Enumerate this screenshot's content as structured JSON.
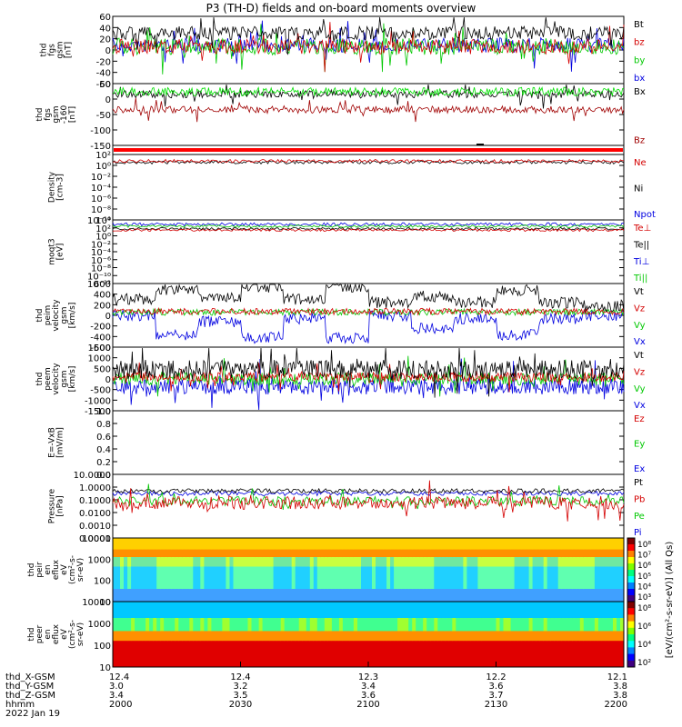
{
  "title": "P3 (TH-D) fields and on-board moments overview",
  "chart_data": [
    {
      "type": "line",
      "ylabel": [
        "thd",
        "fgs",
        "gsm",
        "[nT]"
      ],
      "ylim": [
        -60,
        60
      ],
      "yticks": [
        "60",
        "40",
        "20",
        "0",
        "-20",
        "-40",
        "-60"
      ],
      "legend": [
        {
          "name": "Bt",
          "color": "#000000"
        },
        {
          "name": "bz",
          "color": "#d40000"
        },
        {
          "name": "by",
          "color": "#00c800"
        },
        {
          "name": "bx",
          "color": "#0000e0"
        }
      ]
    },
    {
      "type": "line",
      "ylabel": [
        "thd",
        "fgs",
        "gsm",
        "-160",
        "[nT]"
      ],
      "ylim": [
        -170,
        60
      ],
      "yticks": [
        "50",
        "0",
        "-50",
        "-100",
        "-150"
      ],
      "legend": [
        {
          "name": "Bx",
          "color": "#000000"
        },
        {
          "name": "Bz",
          "color": "#a00000"
        }
      ]
    },
    {
      "type": "line",
      "ylabel": [
        "Density",
        "[cm-3]"
      ],
      "yticks": [
        "10²",
        "10⁰",
        "10⁻²",
        "10⁻⁴",
        "10⁻⁶",
        "10⁻⁸",
        "10⁻¹⁰"
      ],
      "legend": [
        {
          "name": "Ne",
          "color": "#d40000"
        },
        {
          "name": "Ni",
          "color": "#000000"
        },
        {
          "name": "Npot",
          "color": "#0000e0"
        }
      ]
    },
    {
      "type": "line",
      "ylabel": [
        "moqt3",
        "[eV]"
      ],
      "yticks": [
        "10⁴",
        "10²",
        "10⁰",
        "10⁻²",
        "10⁻⁴",
        "10⁻⁶",
        "10⁻⁸",
        "10⁻¹⁰",
        "10⁻¹²"
      ],
      "legend": [
        {
          "name": "Te⊥",
          "color": "#d40000"
        },
        {
          "name": "Te||",
          "color": "#000000"
        },
        {
          "name": "Ti⊥",
          "color": "#0000e0"
        },
        {
          "name": "Ti||",
          "color": "#00c800"
        }
      ]
    },
    {
      "type": "line",
      "ylabel": [
        "thd",
        "peim",
        "velocity",
        "gsm",
        "[km/s]"
      ],
      "ylim": [
        -600,
        600
      ],
      "yticks": [
        "600",
        "400",
        "200",
        "0",
        "-200",
        "-400",
        "-600"
      ],
      "legend": [
        {
          "name": "Vt",
          "color": "#000000"
        },
        {
          "name": "Vz",
          "color": "#d40000"
        },
        {
          "name": "Vy",
          "color": "#00c800"
        },
        {
          "name": "Vx",
          "color": "#0000e0"
        }
      ]
    },
    {
      "type": "line",
      "ylabel": [
        "thd",
        "peem",
        "velocity",
        "gsm",
        "[km/s]"
      ],
      "ylim": [
        -1500,
        1500
      ],
      "yticks": [
        "1500",
        "1000",
        "500",
        "0",
        "-500",
        "-1000",
        "-1500"
      ],
      "legend": [
        {
          "name": "Vt",
          "color": "#000000"
        },
        {
          "name": "Vz",
          "color": "#d40000"
        },
        {
          "name": "Vy",
          "color": "#00c800"
        },
        {
          "name": "Vx",
          "color": "#0000e0"
        }
      ]
    },
    {
      "type": "line",
      "ylabel": [
        "E=-VxB",
        "[mV/m]"
      ],
      "ylim": [
        0,
        1
      ],
      "yticks": [
        "1.0",
        "0.8",
        "0.6",
        "0.4",
        "0.2",
        "0.0"
      ],
      "legend": [
        {
          "name": "Ez",
          "color": "#d40000"
        },
        {
          "name": "Ey",
          "color": "#00c800"
        },
        {
          "name": "Ex",
          "color": "#0000e0"
        }
      ]
    },
    {
      "type": "line",
      "ylabel": [
        "Pressure",
        "[nPa]"
      ],
      "yticks": [
        "10.0000",
        "1.0000",
        "0.1000",
        "0.0100",
        "0.0010",
        "0.0001"
      ],
      "legend": [
        {
          "name": "Pt",
          "color": "#000000"
        },
        {
          "name": "Pb",
          "color": "#d40000"
        },
        {
          "name": "Pe",
          "color": "#00c800"
        },
        {
          "name": "Pi",
          "color": "#0000e0"
        }
      ]
    },
    {
      "type": "heatmap",
      "ylabel": [
        "thd",
        "peir",
        "en",
        "eflux",
        "eV",
        "(cm²-s-",
        "sr-eV)"
      ],
      "yticks": [
        "10000",
        "1000",
        "100",
        "10"
      ],
      "colorbar_ticks": [
        "10⁸",
        "10⁷",
        "10⁶",
        "10⁵",
        "10⁴",
        "10³"
      ]
    },
    {
      "type": "heatmap",
      "ylabel": [
        "thd",
        "peer",
        "en",
        "eflux",
        "eV",
        "(cm²-s-",
        "sr-eV)"
      ],
      "yticks": [
        "10000",
        "1000",
        "100",
        "10"
      ],
      "colorbar_ticks": [
        "10⁸",
        "10⁶",
        "10⁴",
        "10²"
      ],
      "colorbar_label": "[eV/(cm²-s-sr-eV)] (All Qs)"
    }
  ],
  "xaxis": {
    "row_labels": [
      "thd_X-GSM",
      "thd_Y-GSM",
      "thd_Z-GSM",
      "hhmm",
      "2022 Jan 19"
    ],
    "columns": [
      {
        "x": "12.4",
        "y": "3.0",
        "z": "3.4",
        "hhmm": "2000"
      },
      {
        "x": "12.4",
        "y": "3.2",
        "z": "3.5",
        "hhmm": "2030"
      },
      {
        "x": "12.3",
        "y": "3.4",
        "z": "3.6",
        "hhmm": "2100"
      },
      {
        "x": "12.2",
        "y": "3.6",
        "z": "3.7",
        "hhmm": "2130"
      },
      {
        "x": "12.1",
        "y": "3.8",
        "z": "3.8",
        "hhmm": "2200"
      }
    ]
  }
}
